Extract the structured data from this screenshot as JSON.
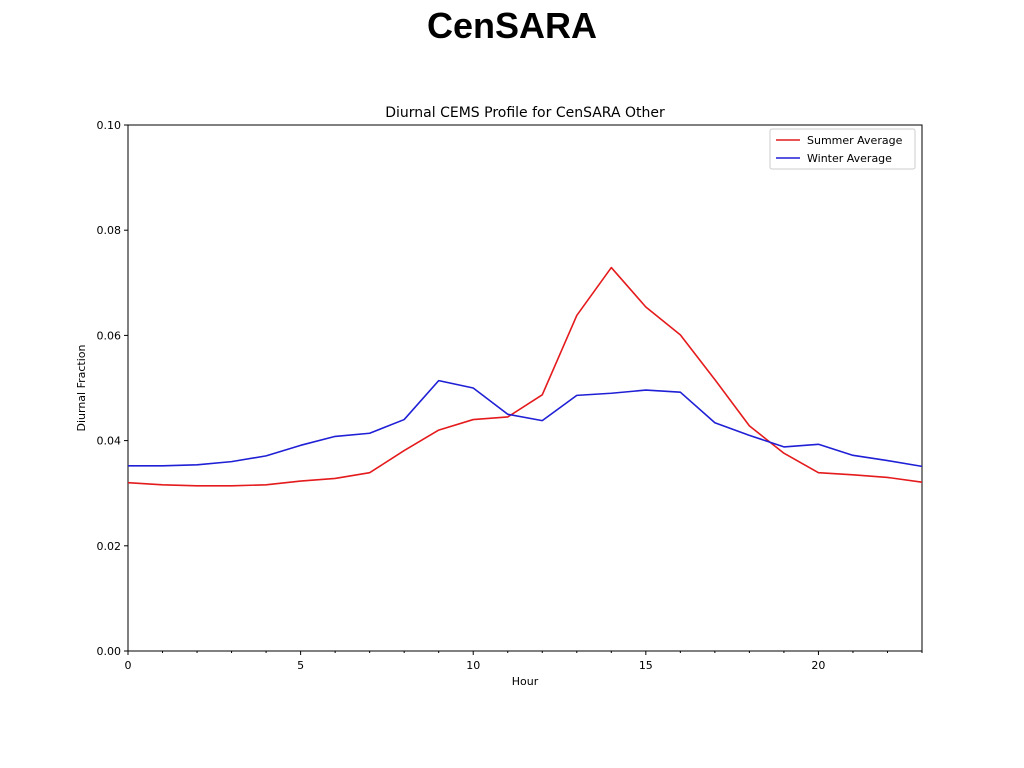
{
  "slide": {
    "title": "CenSARA"
  },
  "chart_data": {
    "type": "line",
    "title": "Diurnal CEMS Profile for CenSARA Other",
    "xlabel": "Hour",
    "ylabel": "Diurnal Fraction",
    "xlim": [
      0,
      23
    ],
    "ylim": [
      0.0,
      0.1
    ],
    "x_ticks": [
      0,
      5,
      10,
      15,
      20
    ],
    "y_ticks": [
      0.0,
      0.02,
      0.04,
      0.06,
      0.08,
      0.1
    ],
    "y_tick_labels": [
      "0.00",
      "0.02",
      "0.04",
      "0.06",
      "0.08",
      "0.10"
    ],
    "grid": false,
    "legend_position": "top-right",
    "x": [
      0,
      1,
      2,
      3,
      4,
      5,
      6,
      7,
      8,
      9,
      10,
      11,
      12,
      13,
      14,
      15,
      16,
      17,
      18,
      19,
      20,
      21,
      22,
      23
    ],
    "series": [
      {
        "name": "Summer Average",
        "color": "#e41a1c",
        "values": [
          0.032,
          0.0316,
          0.0314,
          0.0314,
          0.0316,
          0.0323,
          0.0328,
          0.0339,
          0.0381,
          0.042,
          0.044,
          0.0445,
          0.0487,
          0.0638,
          0.0729,
          0.0654,
          0.0601,
          0.0516,
          0.0428,
          0.0376,
          0.0339,
          0.0335,
          0.033,
          0.0321
        ]
      },
      {
        "name": "Winter Average",
        "color": "#1f1fd6",
        "values": [
          0.0352,
          0.0352,
          0.0354,
          0.036,
          0.0371,
          0.0391,
          0.0408,
          0.0414,
          0.044,
          0.0514,
          0.05,
          0.045,
          0.0438,
          0.0486,
          0.049,
          0.0496,
          0.0492,
          0.0434,
          0.041,
          0.0388,
          0.0393,
          0.0372,
          0.0362,
          0.0351
        ]
      }
    ]
  }
}
